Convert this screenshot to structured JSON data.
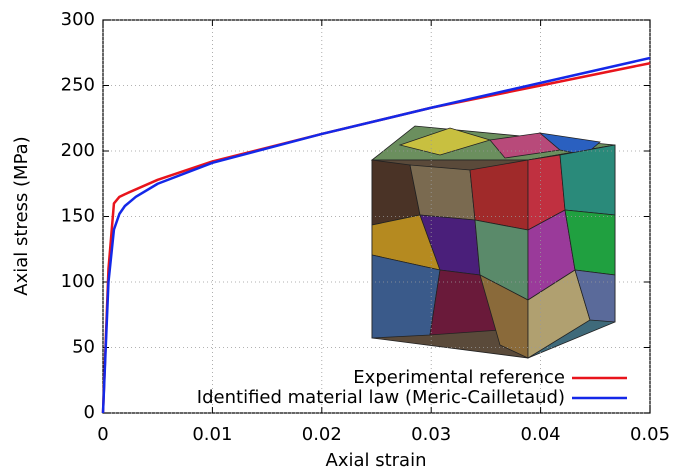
{
  "chart_data": {
    "type": "line",
    "xlabel": "Axial strain",
    "ylabel": "Axial stress (MPa)",
    "xlim": [
      0,
      0.05
    ],
    "xticks": [
      0,
      0.01,
      0.02,
      0.03,
      0.04,
      0.05
    ],
    "ylim": [
      0,
      300
    ],
    "yticks": [
      0,
      50,
      100,
      150,
      200,
      250,
      300
    ],
    "grid": true,
    "legend": "lower right",
    "series": [
      {
        "name": "Experimental reference",
        "color": "#e8141c",
        "x": [
          0,
          0.0005,
          0.001,
          0.0015,
          0.002,
          0.005,
          0.01,
          0.02,
          0.03,
          0.04,
          0.05
        ],
        "values": [
          0,
          110,
          160,
          165,
          167,
          178,
          192,
          213,
          233,
          250,
          267
        ]
      },
      {
        "name": "Identified material law (Meric-Cailletaud)",
        "color": "#1428e8",
        "x": [
          0,
          0.0005,
          0.001,
          0.0015,
          0.002,
          0.003,
          0.005,
          0.01,
          0.02,
          0.03,
          0.04,
          0.05
        ],
        "values": [
          0,
          100,
          140,
          152,
          158,
          165,
          175,
          191,
          213,
          233,
          252,
          271
        ]
      }
    ]
  }
}
